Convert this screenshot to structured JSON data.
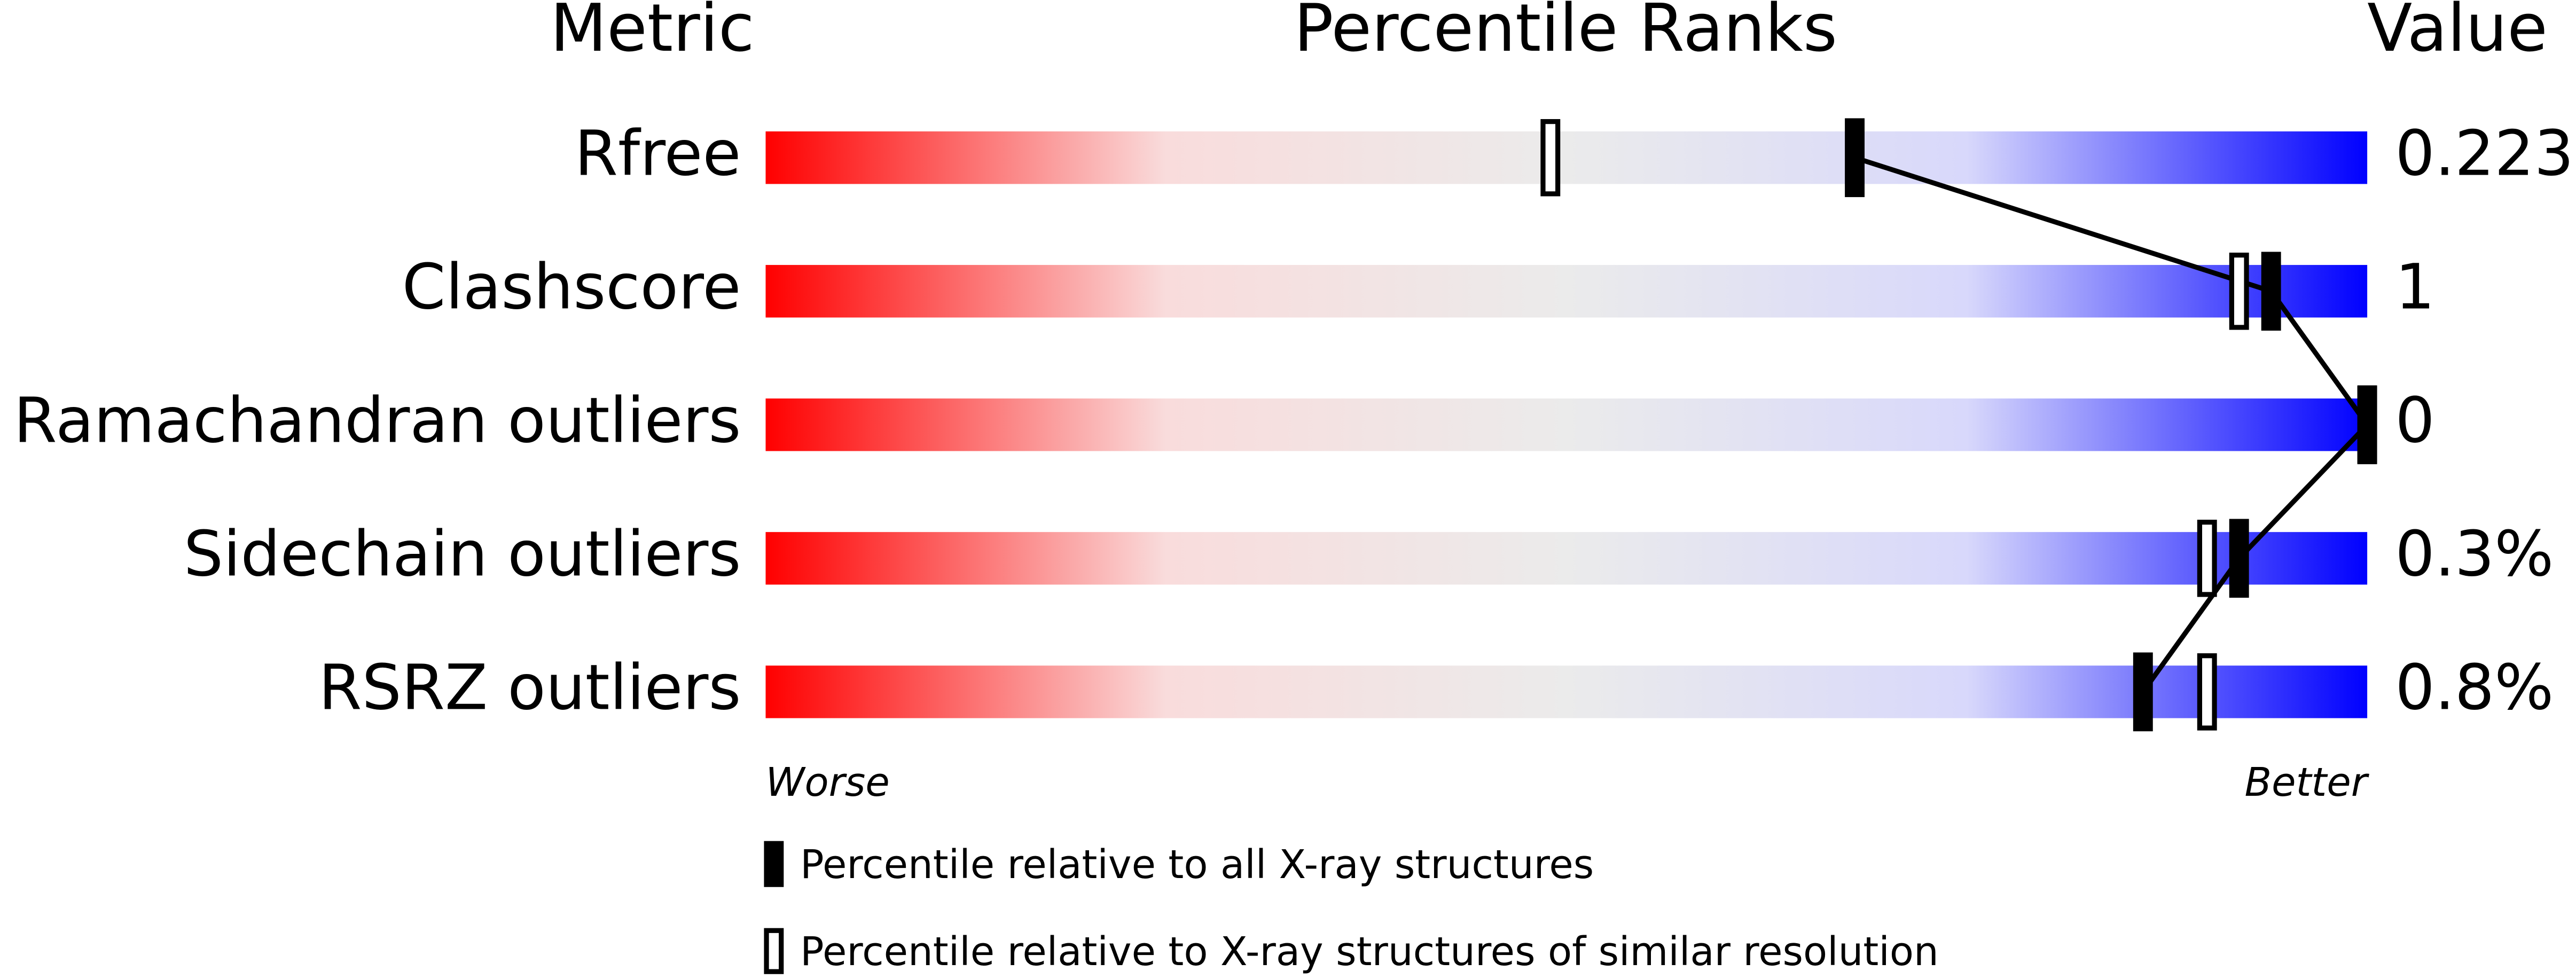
{
  "chart_data": {
    "type": "percentile-slider",
    "headers": [
      "Metric",
      "Percentile Ranks",
      "Value"
    ],
    "categories": [
      "Rfree",
      "Clashscore",
      "Ramachandran outliers",
      "Sidechain outliers",
      "RSRZ outliers"
    ],
    "metric_values": [
      "0.223",
      "1",
      "0",
      "0.3%",
      "0.8%"
    ],
    "series": [
      {
        "name": "Percentile relative to all X-ray structures",
        "color": "#000000",
        "style": "filled",
        "values": [
          68,
          94,
          100,
          92,
          86
        ]
      },
      {
        "name": "Percentile relative to X-ray structures of similar resolution",
        "color": "#000000",
        "style": "hollow",
        "values": [
          49,
          92,
          100,
          90,
          90
        ]
      }
    ],
    "xlim": [
      0,
      100
    ],
    "x_axis_labels": [
      "Worse",
      "Better"
    ],
    "gradient": [
      "#ff0000",
      "#f9dcdc",
      "#ebebeb",
      "#d8d8fb",
      "#0000ff"
    ]
  }
}
